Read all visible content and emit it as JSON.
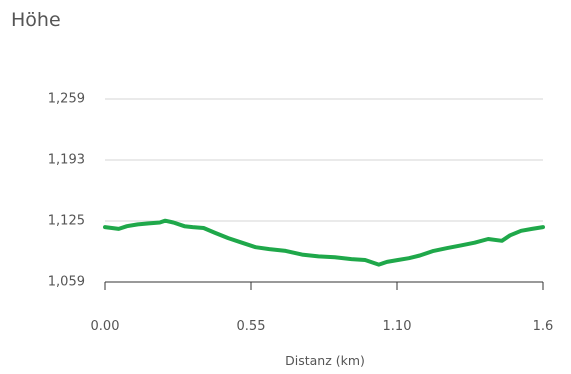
{
  "header": {
    "title": "Höhe"
  },
  "colors": {
    "line": "#1fa84a",
    "grid": "#d6d6d6",
    "axis": "#333333",
    "text": "#555555"
  },
  "chart_data": {
    "type": "line",
    "title": "Höhe",
    "xlabel": "Distanz (km)",
    "ylabel": "",
    "xlim": [
      0,
      1.6
    ],
    "ylim": [
      1059,
      1259
    ],
    "grid": true,
    "x_ticks": [
      "0.00",
      "0.55",
      "1.10",
      "1.6"
    ],
    "y_ticks": [
      "1,259",
      "1,193",
      "1,125",
      "1,059"
    ],
    "series": [
      {
        "x": [
          0.0,
          0.05,
          0.08,
          0.12,
          0.16,
          0.2,
          0.22,
          0.25,
          0.29,
          0.32,
          0.36,
          0.4,
          0.45,
          0.5,
          0.55,
          0.6,
          0.66,
          0.72,
          0.78,
          0.84,
          0.9,
          0.95,
          1.0,
          1.03,
          1.07,
          1.11,
          1.15,
          1.2,
          1.25,
          1.3,
          1.35,
          1.4,
          1.45,
          1.48,
          1.52,
          1.56,
          1.6
        ],
        "y": [
          1119,
          1117,
          1120,
          1122,
          1123,
          1124,
          1126,
          1124,
          1120,
          1119,
          1118,
          1113,
          1107,
          1102,
          1097,
          1095,
          1093,
          1089,
          1087,
          1086,
          1084,
          1083,
          1078,
          1081,
          1083,
          1085,
          1088,
          1093,
          1096,
          1099,
          1102,
          1106,
          1104,
          1110,
          1115,
          1117,
          1119
        ]
      }
    ]
  }
}
